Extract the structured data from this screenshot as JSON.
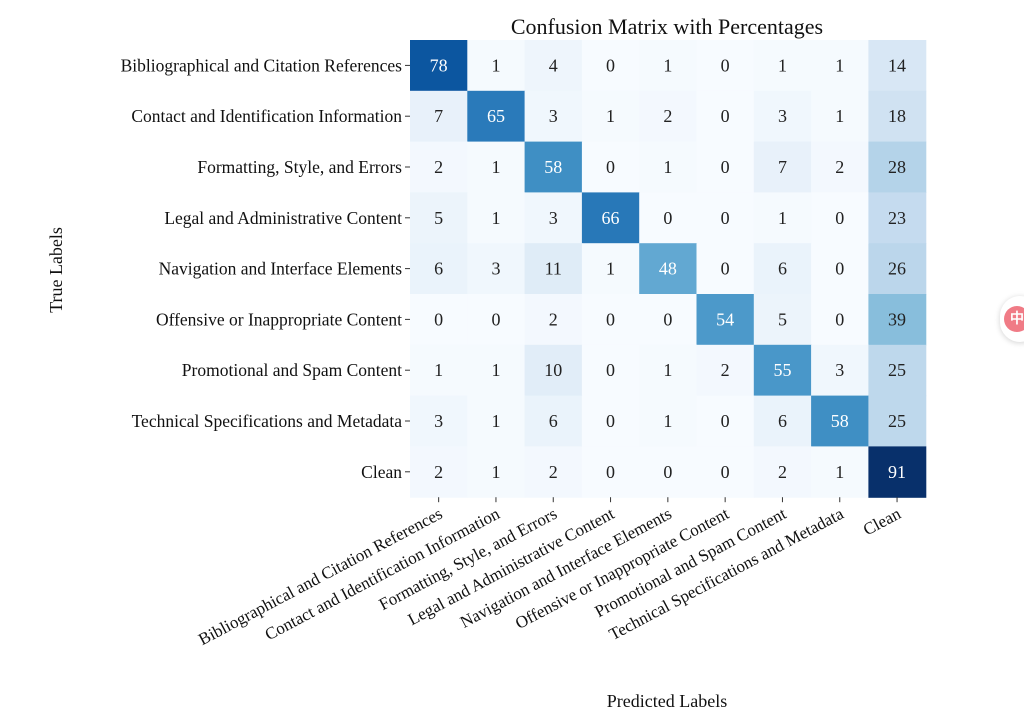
{
  "chart_data": {
    "type": "heatmap",
    "title": "Confusion Matrix with Percentages",
    "xlabel": "Predicted Labels",
    "ylabel": "True Labels",
    "row_labels": [
      "Bibliographical and Citation References",
      "Contact and Identification Information",
      "Formatting, Style, and Errors",
      "Legal and Administrative Content",
      "Navigation and Interface Elements",
      "Offensive or Inappropriate Content",
      "Promotional and Spam Content",
      "Technical Specifications and Metadata",
      "Clean"
    ],
    "col_labels": [
      "Bibliographical and Citation References",
      "Contact and Identification Information",
      "Formatting, Style, and Errors",
      "Legal and Administrative Content",
      "Navigation and Interface Elements",
      "Offensive or Inappropriate Content",
      "Promotional and Spam Content",
      "Technical Specifications and Metadata",
      "Clean"
    ],
    "values": [
      [
        78,
        1,
        4,
        0,
        1,
        0,
        1,
        1,
        14
      ],
      [
        7,
        65,
        3,
        1,
        2,
        0,
        3,
        1,
        18
      ],
      [
        2,
        1,
        58,
        0,
        1,
        0,
        7,
        2,
        28
      ],
      [
        5,
        1,
        3,
        66,
        0,
        0,
        1,
        0,
        23
      ],
      [
        6,
        3,
        11,
        1,
        48,
        0,
        6,
        0,
        26
      ],
      [
        0,
        0,
        2,
        0,
        0,
        54,
        5,
        0,
        39
      ],
      [
        1,
        1,
        10,
        0,
        1,
        2,
        55,
        3,
        25
      ],
      [
        3,
        1,
        6,
        0,
        1,
        0,
        6,
        58,
        25
      ],
      [
        2,
        1,
        2,
        0,
        0,
        0,
        2,
        1,
        91
      ]
    ],
    "colormap": "Blues",
    "value_range": [
      0,
      91
    ]
  },
  "side_widget": {
    "glyph": "中",
    "color": "#f07b86"
  }
}
